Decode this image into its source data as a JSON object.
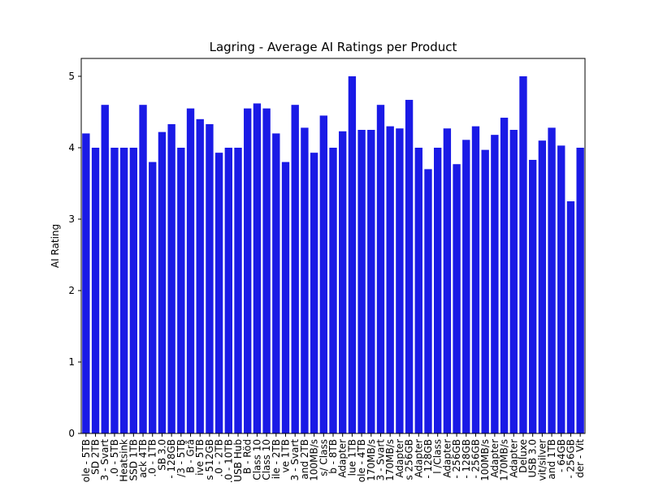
{
  "chart_data": {
    "type": "bar",
    "title": "Lagring - Average AI Ratings per Product",
    "ylabel": "AI Rating",
    "categories": [
      "ole - 5TB",
      "SD 2TB",
      "3 - Svart",
      ".0 - 5TB",
      "Heatsink",
      "SSD 1TB",
      "ack 4TB",
      ".0 - 1TB",
      "SB 3.0",
      "- 128GB",
      "/3 - 5TB",
      "B - Grå",
      "ive 5TB",
      "s 512GB",
      ".0 - 2TB",
      ".0 - 10TB",
      "USB Hub",
      "B - Röd",
      "Class 10",
      "Class 10",
      "ile - 2TB",
      "ve 1TB",
      "3 - Svart",
      "and 2TB",
      "100MB/s",
      "s/ Class",
      "b - 8TB",
      "Adapter",
      "lue 1TB",
      "ole - 4TB",
      "170MB/s",
      "3 - Svart",
      "170MB/s",
      "Adapter",
      "s 256GB",
      "Adapter",
      "- 128GB",
      "l /Class",
      "Adapter",
      "- 256GB",
      "- 128GB",
      "- 256GB",
      "100MB/s",
      "Adapter",
      "170MB/s",
      "Adapter",
      "Deluxe",
      "USB 3.0",
      "vit/silver",
      "and 1TB",
      "- 64GB",
      "- 256GB",
      "der - Vit"
    ],
    "values": [
      4.2,
      4.0,
      4.6,
      4.0,
      4.0,
      4.0,
      4.6,
      3.8,
      4.22,
      4.33,
      4.0,
      4.55,
      4.4,
      4.33,
      3.93,
      4.0,
      4.0,
      4.55,
      4.62,
      4.55,
      4.2,
      3.8,
      4.6,
      4.28,
      3.93,
      4.45,
      4.0,
      4.23,
      5.0,
      4.25,
      4.25,
      4.6,
      4.3,
      4.27,
      4.67,
      4.0,
      3.7,
      4.0,
      4.27,
      3.77,
      4.11,
      4.3,
      3.97,
      4.18,
      4.42,
      4.25,
      5.0,
      3.83,
      4.1,
      4.28,
      4.03,
      3.25,
      4.0
    ],
    "color": "#1a1ae6",
    "ylim": [
      0,
      5.25
    ],
    "yticks": [
      0,
      1,
      2,
      3,
      4,
      5
    ]
  }
}
